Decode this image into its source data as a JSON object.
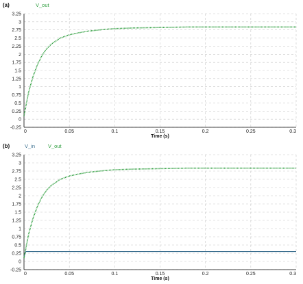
{
  "colors": {
    "v_out": "#2e9e3e",
    "v_in": "#3b6f8f",
    "grid": "#c8c8c8",
    "axis": "#000000"
  },
  "chart_data": [
    {
      "type": "line",
      "panel_label": "(a)",
      "xlabel": "Time (s)",
      "ylabel": "",
      "xlim": [
        0,
        0.3
      ],
      "ylim": [
        -0.25,
        3.25
      ],
      "x_ticks": [
        0,
        0.05,
        0.1,
        0.15,
        0.2,
        0.25,
        0.3
      ],
      "x_tick_labels": [
        "0",
        "0.05",
        "0.1",
        "0.15",
        "0.2",
        "0.25",
        "0.3"
      ],
      "y_ticks": [
        -0.25,
        0,
        0.25,
        0.5,
        0.75,
        1,
        1.25,
        1.5,
        1.75,
        2,
        2.25,
        2.5,
        2.75,
        3,
        3.25
      ],
      "y_tick_labels": [
        "-0.25",
        "0",
        "0.25",
        "0.5",
        "0.75",
        "1",
        "1.25",
        "1.5",
        "1.75",
        "2",
        "2.25",
        "2.5",
        "2.75",
        "3",
        "3.25"
      ],
      "grid": true,
      "legend": "top-left",
      "series": [
        {
          "name": "V_out",
          "color": "#2e9e3e",
          "style": "dotted",
          "x": [
            0,
            0.005,
            0.01,
            0.015,
            0.02,
            0.025,
            0.03,
            0.04,
            0.05,
            0.06,
            0.07,
            0.08,
            0.09,
            0.1,
            0.12,
            0.14,
            0.16,
            0.18,
            0.2,
            0.25,
            0.3
          ],
          "y": [
            0.1,
            0.82,
            1.32,
            1.69,
            1.97,
            2.17,
            2.31,
            2.5,
            2.6,
            2.66,
            2.71,
            2.74,
            2.77,
            2.79,
            2.81,
            2.82,
            2.83,
            2.84,
            2.84,
            2.84,
            2.84
          ]
        }
      ]
    },
    {
      "type": "line",
      "panel_label": "(b)",
      "xlabel": "Time (s)",
      "ylabel": "",
      "xlim": [
        0,
        0.3
      ],
      "ylim": [
        -0.25,
        3.25
      ],
      "x_ticks": [
        0,
        0.05,
        0.1,
        0.15,
        0.2,
        0.25,
        0.3
      ],
      "x_tick_labels": [
        "0",
        "0.05",
        "0.1",
        "0.15",
        "0.2",
        "0.25",
        "0.3"
      ],
      "y_ticks": [
        -0.25,
        0,
        0.25,
        0.5,
        0.75,
        1,
        1.25,
        1.5,
        1.75,
        2,
        2.25,
        2.5,
        2.75,
        3,
        3.25
      ],
      "y_tick_labels": [
        "-0.25",
        "0",
        "0.25",
        "0.5",
        "0.75",
        "1",
        "1.25",
        "1.5",
        "1.75",
        "2",
        "2.25",
        "2.5",
        "2.75",
        "3",
        "3.25"
      ],
      "grid": true,
      "legend": "top-left",
      "series": [
        {
          "name": "V_in",
          "color": "#3b6f8f",
          "style": "solid",
          "x": [
            0,
            0.002,
            0.3
          ],
          "y": [
            0.15,
            0.3,
            0.3
          ]
        },
        {
          "name": "V_out",
          "color": "#2e9e3e",
          "style": "dotted",
          "x": [
            0,
            0.005,
            0.01,
            0.015,
            0.02,
            0.025,
            0.03,
            0.04,
            0.05,
            0.06,
            0.07,
            0.08,
            0.09,
            0.1,
            0.12,
            0.14,
            0.16,
            0.18,
            0.2,
            0.25,
            0.3
          ],
          "y": [
            0.1,
            0.82,
            1.32,
            1.69,
            1.97,
            2.17,
            2.31,
            2.5,
            2.6,
            2.66,
            2.71,
            2.74,
            2.77,
            2.79,
            2.81,
            2.82,
            2.83,
            2.84,
            2.84,
            2.84,
            2.84
          ]
        }
      ]
    }
  ]
}
